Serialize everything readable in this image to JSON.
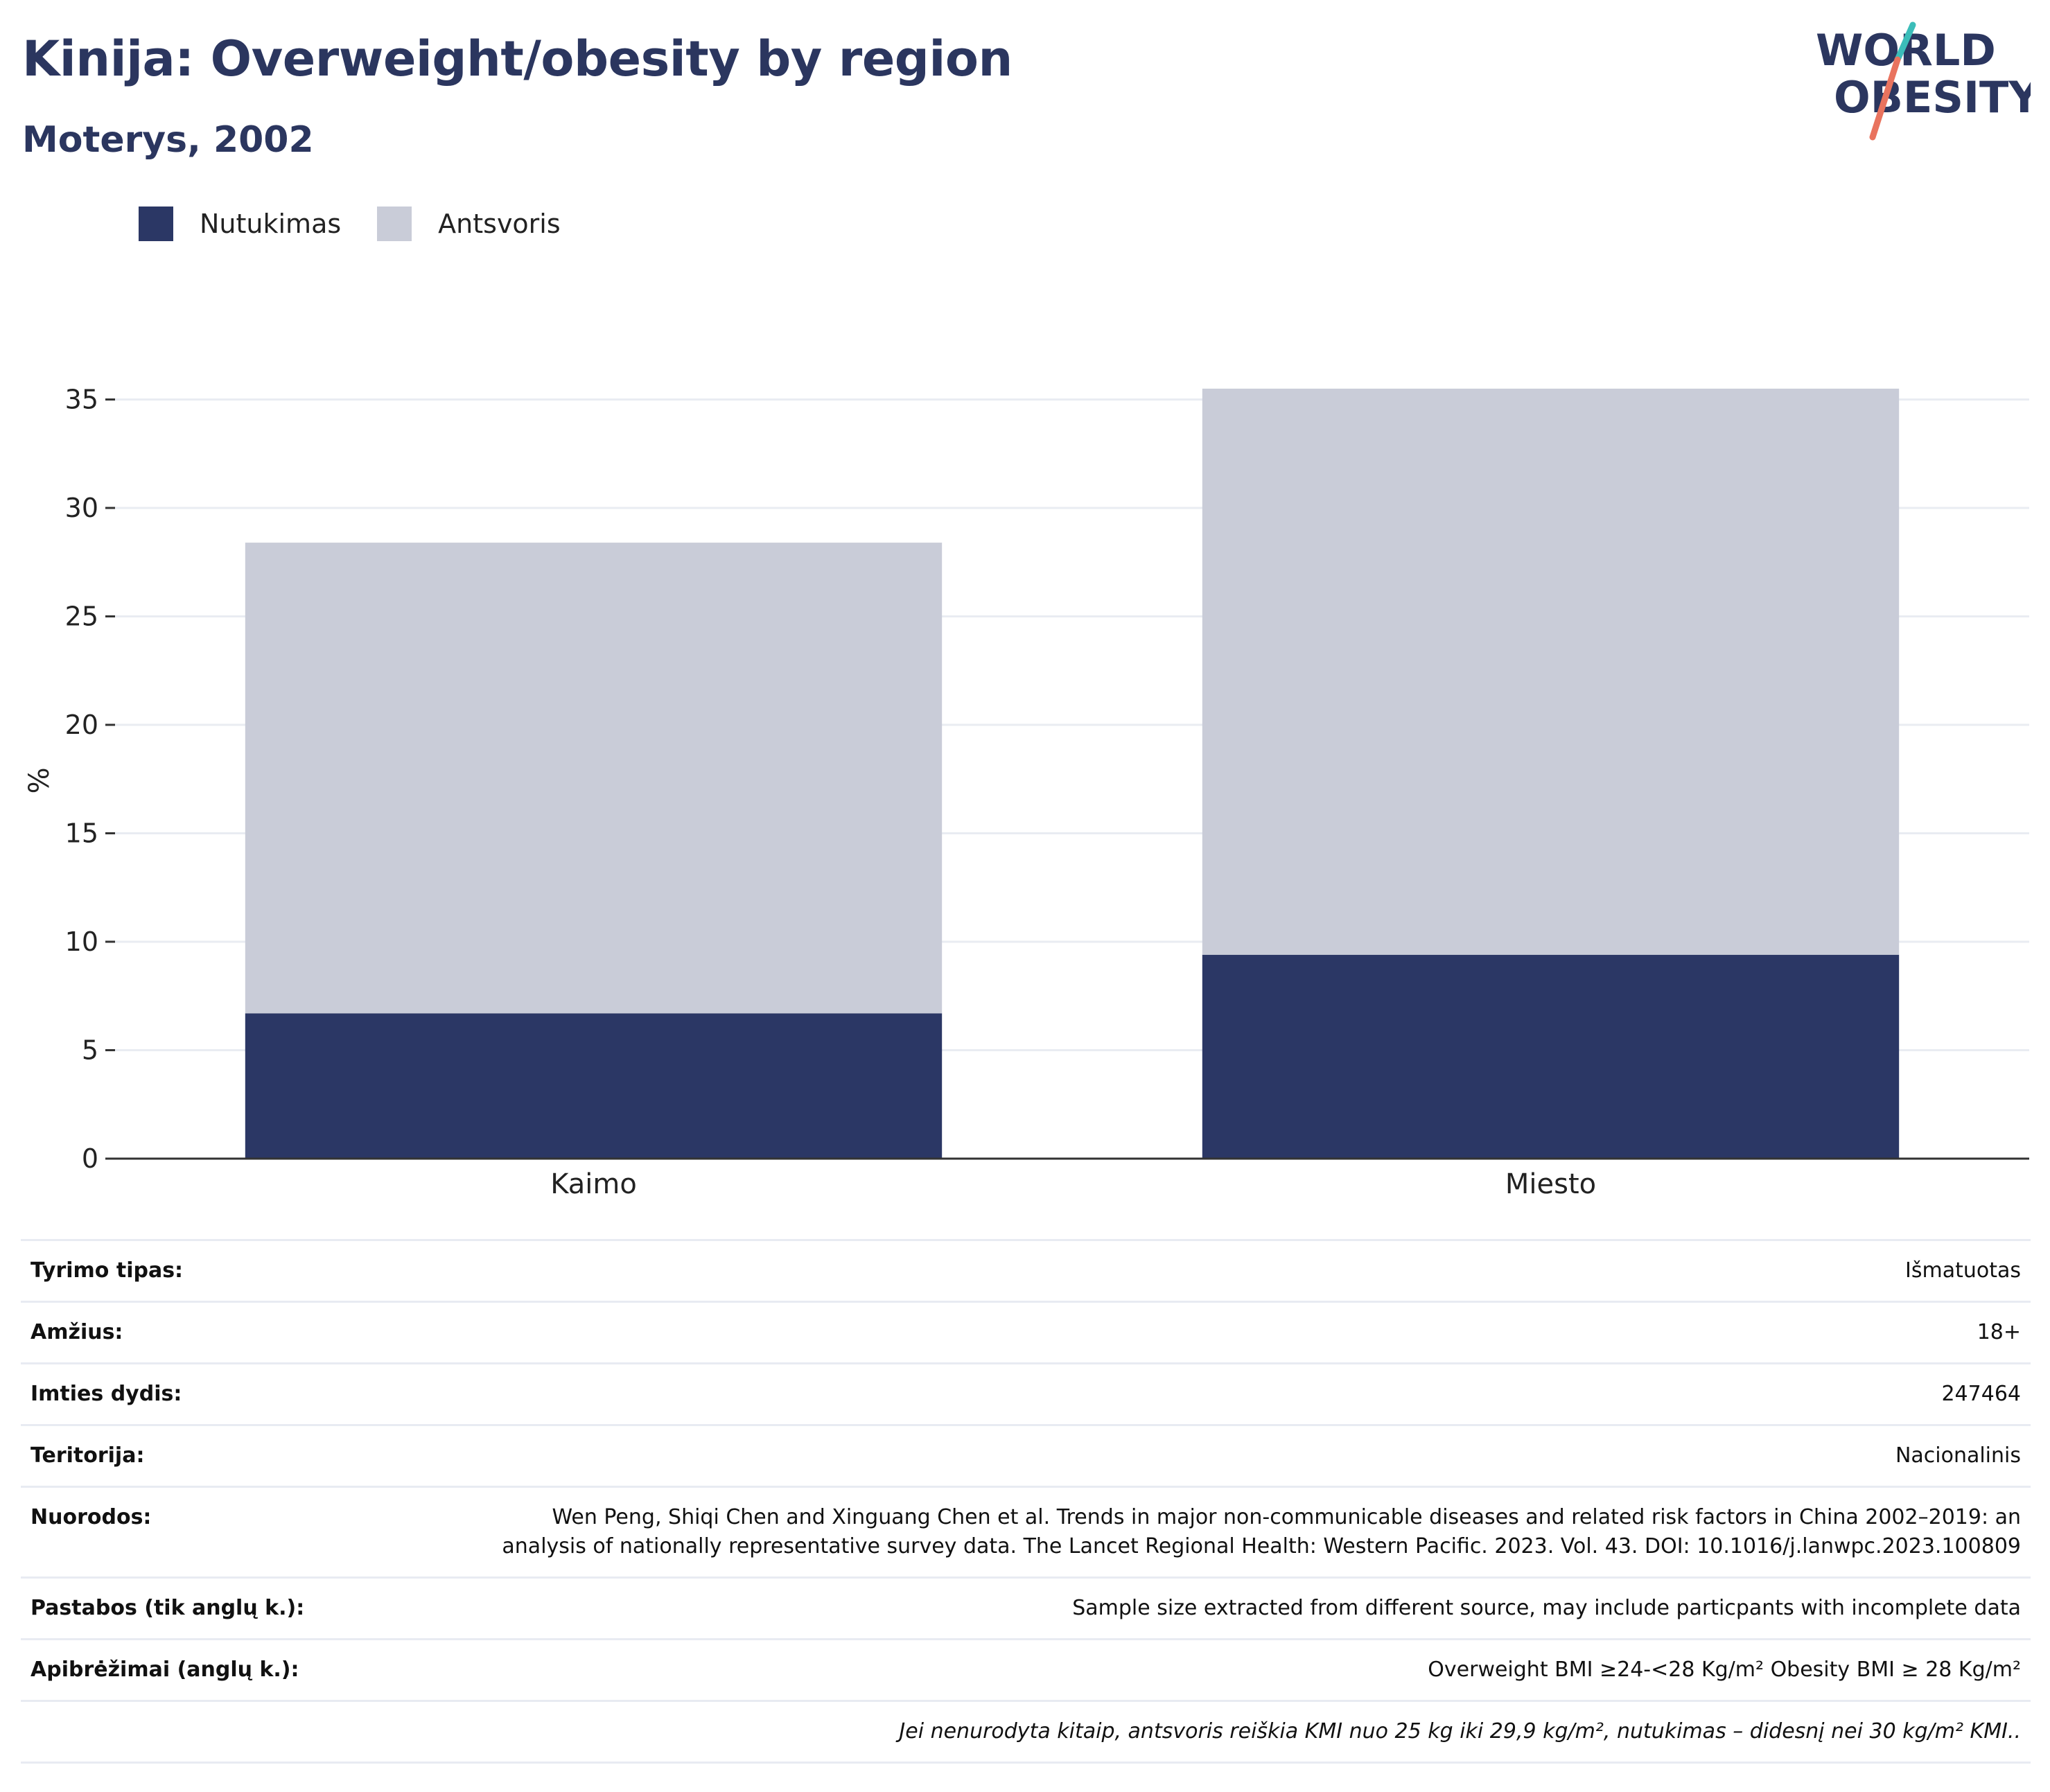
{
  "header": {
    "title": "Kinija: Overweight/obesity by region",
    "subtitle": "Moterys, 2002",
    "logo_line1": "WORLD",
    "logo_line2": "OBESITY"
  },
  "colors": {
    "obesity": "#2b3765",
    "overweight": "#c9ccd8",
    "title": "#2b365f",
    "logo_teal": "#3bbdb9",
    "logo_coral": "#e9735e"
  },
  "legend": [
    {
      "label": "Nutukimas",
      "color": "#2b3765"
    },
    {
      "label": "Antsvoris",
      "color": "#c9ccd8"
    }
  ],
  "chart_data": {
    "type": "bar",
    "stacked": true,
    "categories": [
      "Kaimo",
      "Miesto"
    ],
    "series": [
      {
        "name": "Nutukimas",
        "values": [
          6.7,
          9.4
        ],
        "color": "#2b3765"
      },
      {
        "name": "Antsvoris",
        "values": [
          21.7,
          26.1
        ],
        "color": "#c9ccd8"
      }
    ],
    "ylabel": "%",
    "ylim": [
      0,
      35.5
    ],
    "yticks": [
      0,
      5,
      10,
      15,
      20,
      25,
      30,
      35
    ],
    "grid": true,
    "legend_position": "top-left"
  },
  "info": [
    {
      "label": "Tyrimo tipas:",
      "value": "Išmatuotas"
    },
    {
      "label": "Amžius:",
      "value": "18+"
    },
    {
      "label": "Imties dydis:",
      "value": "247464"
    },
    {
      "label": "Teritorija:",
      "value": "Nacionalinis"
    },
    {
      "label": "Nuorodos:",
      "value": "Wen Peng, Shiqi Chen and Xinguang Chen et al. Trends in major non-communicable diseases and related risk factors in China 2002–2019: an analysis of nationally representative survey data. The Lancet Regional Health: Western Pacific. 2023. Vol. 43. DOI: 10.1016/j.lanwpc.2023.100809"
    },
    {
      "label": "Pastabos (tik anglų k.):",
      "value": "Sample size extracted from different source, may include particpants with incomplete data"
    },
    {
      "label": "Apibrėžimai (anglų k.):",
      "value": "Overweight BMI ≥24-<28 Kg/m² Obesity BMI ≥ 28 Kg/m²"
    }
  ],
  "footnote": "Jei nenurodyta kitaip, antsvoris reiškia KMI nuo 25 kg iki 29,9 kg/m², nutukimas – didesnį nei 30 kg/m² KMI.."
}
